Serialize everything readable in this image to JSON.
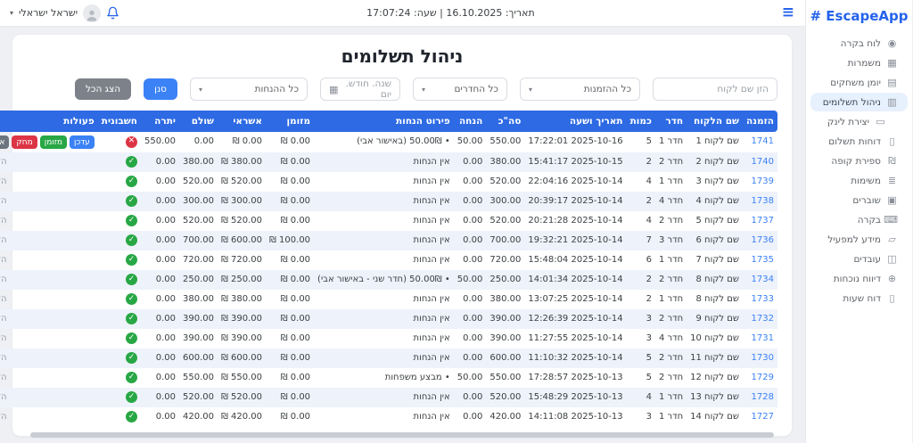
{
  "colors": {
    "primary_blue": "#2563eb",
    "table_header_blue": "#2d6ae3",
    "row_stripe": "#eef2fb",
    "green": "#28a745",
    "red": "#dc3545",
    "gray_button": "#6c757d",
    "blue_button": "#3b82f6",
    "active_item_bg": "#e7f0fd"
  },
  "topbar": {
    "hamburger_icon": "≡",
    "datetime_text": "תאריך: 16.10.2025 | שעה: 17:07:24",
    "user_name": "ישראל ישראלי",
    "chevron_icon": "▾"
  },
  "sidebar": {
    "logo": "# EscapeApp",
    "items": [
      {
        "label": "לוח בקרה",
        "icon": "dashboard-icon",
        "glyph": "◉",
        "active": false,
        "sub": false
      },
      {
        "label": "משמרות",
        "icon": "shifts-icon",
        "glyph": "▦",
        "active": false,
        "sub": false
      },
      {
        "label": "יומן משחקים",
        "icon": "games-calendar-icon",
        "glyph": "▤",
        "active": false,
        "sub": false
      },
      {
        "label": "ניהול תשלומים",
        "icon": "payments-icon",
        "glyph": "▥",
        "active": true,
        "sub": false
      },
      {
        "label": "יצירת לינק",
        "icon": "create-link-icon",
        "glyph": "▭",
        "active": false,
        "sub": true
      },
      {
        "label": "דוחות תשלום",
        "icon": "payment-reports-icon",
        "glyph": "▯",
        "active": false,
        "sub": false
      },
      {
        "label": "ספירת קופה",
        "icon": "cash-count-icon",
        "glyph": "₪",
        "active": false,
        "sub": false
      },
      {
        "label": "משימות",
        "icon": "tasks-icon",
        "glyph": "≣",
        "active": false,
        "sub": false
      },
      {
        "label": "שוברים",
        "icon": "vouchers-icon",
        "glyph": "▣",
        "active": false,
        "sub": false
      },
      {
        "label": "בקרה",
        "icon": "monitoring-icon",
        "glyph": "⌨",
        "active": false,
        "sub": false
      },
      {
        "label": "מידע למפעיל",
        "icon": "operator-info-icon",
        "glyph": "▱",
        "active": false,
        "sub": false
      },
      {
        "label": "עובדים",
        "icon": "employees-icon",
        "glyph": "◫",
        "active": false,
        "sub": false
      },
      {
        "label": "דיווח נוכחות",
        "icon": "attendance-icon",
        "glyph": "⊕",
        "active": false,
        "sub": false
      },
      {
        "label": "דוח שעות",
        "icon": "hours-report-icon",
        "glyph": "▯",
        "active": false,
        "sub": false
      }
    ]
  },
  "page": {
    "title": "ניהול תשלומים"
  },
  "filters": {
    "customer_name_placeholder": "הזן שם לקוח",
    "orders_select_value": "כל ההזמנות",
    "rooms_select_value": "כל החדרים",
    "date_placeholder": "שנה. חודש. יום",
    "discounts_select_value": "כל ההנחות",
    "filter_button": "סנן",
    "show_all_button": "הצג הכל",
    "chevron_icon": "▾",
    "calendar_icon": "▦"
  },
  "table": {
    "headers": [
      "הזמנה",
      "שם הלקוח",
      "חדר",
      "כמות",
      "תאריך ושעה",
      "סה\"כ",
      "הנחה",
      "פירוט הנחות",
      "מזומן",
      "אשראי",
      "שולם",
      "יתרה",
      "חשבונית",
      "פעולות"
    ],
    "closed_order_label": "הזמנה סגורה",
    "invoice_paid_glyph": "✓",
    "invoice_unpaid_glyph": "✕",
    "action_buttons": [
      {
        "label": "עדכן",
        "type": "update"
      },
      {
        "label": "מזומן",
        "type": "cash"
      },
      {
        "label": "מחק",
        "type": "delete"
      },
      {
        "label": "איפוס טיימר",
        "type": "reset-timer"
      }
    ],
    "rows": [
      {
        "order": "1741",
        "customer": "שם לקוח 1",
        "room": "חדר 1",
        "qty": "5",
        "datetime": "2025-10-16 17:22:01",
        "total": "550.00",
        "discount": "50.00",
        "details": "• 50.00₪ (באישור אבי)",
        "cash": "0.00 ₪",
        "credit": "0.00 ₪",
        "paid": "0.00",
        "balance": "550.00",
        "invoice": "unpaid",
        "actions": "buttons"
      },
      {
        "order": "1740",
        "customer": "שם לקוח 2",
        "room": "חדר 2",
        "qty": "2",
        "datetime": "2025-10-15 15:41:17",
        "total": "380.00",
        "discount": "0.00",
        "details": "אין הנחות",
        "cash": "0.00 ₪",
        "credit": "380.00 ₪",
        "paid": "380.00",
        "balance": "0.00",
        "invoice": "paid",
        "actions": "closed"
      },
      {
        "order": "1739",
        "customer": "שם לקוח 3",
        "room": "חדר 1",
        "qty": "4",
        "datetime": "2025-10-14 22:04:16",
        "total": "520.00",
        "discount": "0.00",
        "details": "אין הנחות",
        "cash": "0.00 ₪",
        "credit": "520.00 ₪",
        "paid": "520.00",
        "balance": "0.00",
        "invoice": "paid",
        "actions": "closed"
      },
      {
        "order": "1738",
        "customer": "שם לקוח 4",
        "room": "חדר 4",
        "qty": "2",
        "datetime": "2025-10-14 20:39:17",
        "total": "300.00",
        "discount": "0.00",
        "details": "אין הנחות",
        "cash": "0.00 ₪",
        "credit": "300.00 ₪",
        "paid": "300.00",
        "balance": "0.00",
        "invoice": "paid",
        "actions": "closed"
      },
      {
        "order": "1737",
        "customer": "שם לקוח 5",
        "room": "חדר 2",
        "qty": "4",
        "datetime": "2025-10-14 20:21:28",
        "total": "520.00",
        "discount": "0.00",
        "details": "אין הנחות",
        "cash": "0.00 ₪",
        "credit": "520.00 ₪",
        "paid": "520.00",
        "balance": "0.00",
        "invoice": "paid",
        "actions": "closed"
      },
      {
        "order": "1736",
        "customer": "שם לקוח 6",
        "room": "חדר 3",
        "qty": "7",
        "datetime": "2025-10-14 19:32:21",
        "total": "700.00",
        "discount": "0.00",
        "details": "אין הנחות",
        "cash": "100.00 ₪",
        "credit": "600.00 ₪",
        "paid": "700.00",
        "balance": "0.00",
        "invoice": "paid",
        "actions": "closed"
      },
      {
        "order": "1735",
        "customer": "שם לקוח 7",
        "room": "חדר 1",
        "qty": "6",
        "datetime": "2025-10-14 15:48:04",
        "total": "720.00",
        "discount": "0.00",
        "details": "אין הנחות",
        "cash": "0.00 ₪",
        "credit": "720.00 ₪",
        "paid": "720.00",
        "balance": "0.00",
        "invoice": "paid",
        "actions": "closed"
      },
      {
        "order": "1734",
        "customer": "שם לקוח 8",
        "room": "חדר 2",
        "qty": "2",
        "datetime": "2025-10-14 14:01:34",
        "total": "250.00",
        "discount": "50.00",
        "details": "• 50.00₪ (חדר שני - באישור אבי)",
        "cash": "0.00 ₪",
        "credit": "250.00 ₪",
        "paid": "250.00",
        "balance": "0.00",
        "invoice": "paid",
        "actions": "closed"
      },
      {
        "order": "1733",
        "customer": "שם לקוח 8",
        "room": "חדר 1",
        "qty": "2",
        "datetime": "2025-10-14 13:07:25",
        "total": "380.00",
        "discount": "0.00",
        "details": "אין הנחות",
        "cash": "0.00 ₪",
        "credit": "380.00 ₪",
        "paid": "380.00",
        "balance": "0.00",
        "invoice": "paid",
        "actions": "closed"
      },
      {
        "order": "1732",
        "customer": "שם לקוח 9",
        "room": "חדר 2",
        "qty": "3",
        "datetime": "2025-10-14 12:26:39",
        "total": "390.00",
        "discount": "0.00",
        "details": "אין הנחות",
        "cash": "0.00 ₪",
        "credit": "390.00 ₪",
        "paid": "390.00",
        "balance": "0.00",
        "invoice": "paid",
        "actions": "closed"
      },
      {
        "order": "1731",
        "customer": "שם לקוח 10",
        "room": "חדר 4",
        "qty": "3",
        "datetime": "2025-10-14 11:27:55",
        "total": "390.00",
        "discount": "0.00",
        "details": "אין הנחות",
        "cash": "0.00 ₪",
        "credit": "390.00 ₪",
        "paid": "390.00",
        "balance": "0.00",
        "invoice": "paid",
        "actions": "closed"
      },
      {
        "order": "1730",
        "customer": "שם לקוח 11",
        "room": "חדר 2",
        "qty": "5",
        "datetime": "2025-10-14 11:10:32",
        "total": "600.00",
        "discount": "0.00",
        "details": "אין הנחות",
        "cash": "0.00 ₪",
        "credit": "600.00 ₪",
        "paid": "600.00",
        "balance": "0.00",
        "invoice": "paid",
        "actions": "closed"
      },
      {
        "order": "1729",
        "customer": "שם לקוח 12",
        "room": "חדר 2",
        "qty": "5",
        "datetime": "2025-10-13 17:28:57",
        "total": "550.00",
        "discount": "50.00",
        "details": "• מבצע משפחות",
        "cash": "0.00 ₪",
        "credit": "550.00 ₪",
        "paid": "550.00",
        "balance": "0.00",
        "invoice": "paid",
        "actions": "closed"
      },
      {
        "order": "1728",
        "customer": "שם לקוח 13",
        "room": "חדר 1",
        "qty": "4",
        "datetime": "2025-10-13 15:48:29",
        "total": "520.00",
        "discount": "0.00",
        "details": "אין הנחות",
        "cash": "0.00 ₪",
        "credit": "520.00 ₪",
        "paid": "520.00",
        "balance": "0.00",
        "invoice": "paid",
        "actions": "closed"
      },
      {
        "order": "1727",
        "customer": "שם לקוח 14",
        "room": "חדר 1",
        "qty": "3",
        "datetime": "2025-10-13 14:11:08",
        "total": "420.00",
        "discount": "0.00",
        "details": "אין הנחות",
        "cash": "0.00 ₪",
        "credit": "420.00 ₪",
        "paid": "420.00",
        "balance": "0.00",
        "invoice": "paid",
        "actions": "closed"
      }
    ]
  }
}
